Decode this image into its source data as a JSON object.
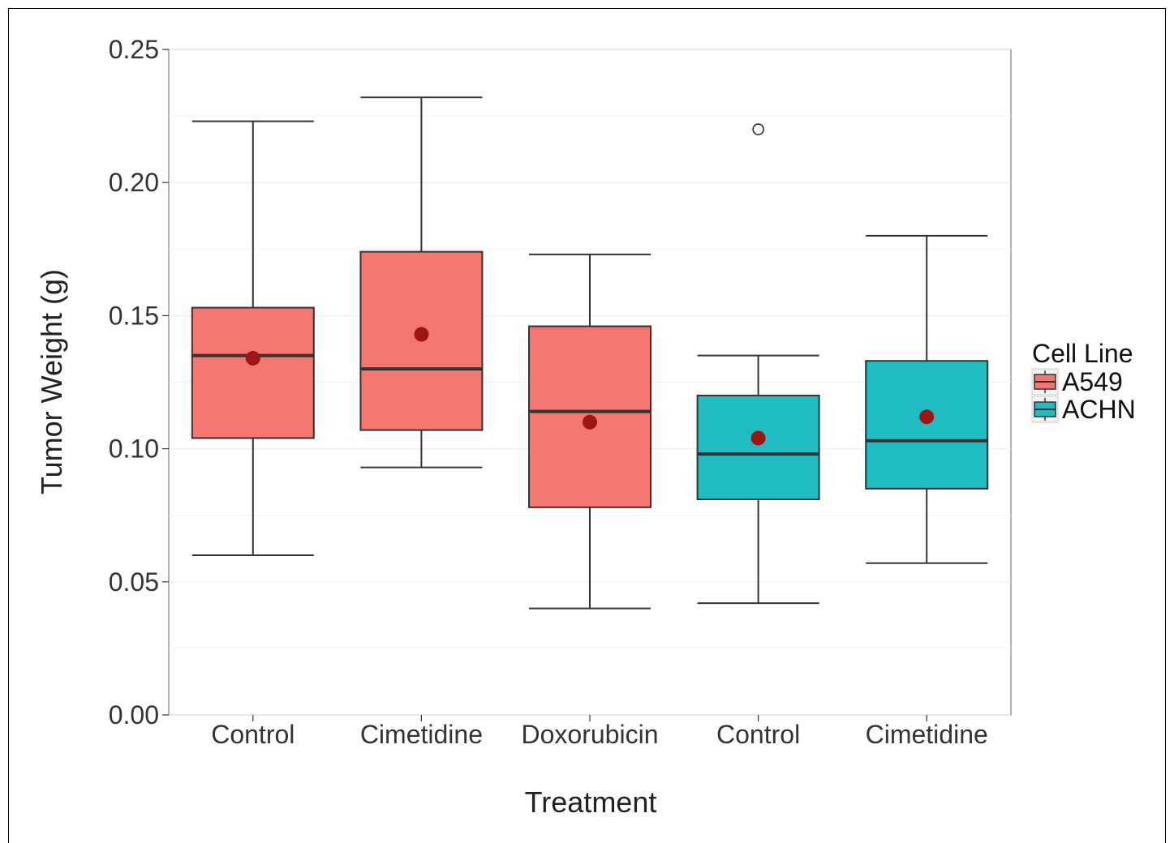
{
  "chart_data": {
    "type": "boxplot",
    "xlabel": "Treatment",
    "ylabel": "Tumor Weight (g)",
    "ylim": [
      0,
      0.25
    ],
    "yticks": [
      "0.00",
      "0.05",
      "0.10",
      "0.15",
      "0.20",
      "0.25"
    ],
    "ytick_values": [
      0,
      0.05,
      0.1,
      0.15,
      0.2,
      0.25
    ],
    "grid": true,
    "legend": {
      "title": "Cell Line",
      "position": "right",
      "entries": [
        {
          "name": "A549",
          "color": "#F37670"
        },
        {
          "name": "ACHN",
          "color": "#1FBDC2"
        }
      ]
    },
    "mean_marker_color": "#9E1515",
    "boxes": [
      {
        "category": "Control",
        "group": "A549",
        "whisker_low": 0.06,
        "q1": 0.104,
        "median": 0.135,
        "q3": 0.153,
        "whisker_high": 0.223,
        "mean": 0.134,
        "outliers": []
      },
      {
        "category": "Cimetidine",
        "group": "A549",
        "whisker_low": 0.093,
        "q1": 0.107,
        "median": 0.13,
        "q3": 0.174,
        "whisker_high": 0.232,
        "mean": 0.143,
        "outliers": []
      },
      {
        "category": "Doxorubicin",
        "group": "A549",
        "whisker_low": 0.04,
        "q1": 0.078,
        "median": 0.114,
        "q3": 0.146,
        "whisker_high": 0.173,
        "mean": 0.11,
        "outliers": []
      },
      {
        "category": "Control",
        "group": "ACHN",
        "whisker_low": 0.042,
        "q1": 0.081,
        "median": 0.098,
        "q3": 0.12,
        "whisker_high": 0.135,
        "mean": 0.104,
        "outliers": [
          0.22
        ]
      },
      {
        "category": "Cimetidine",
        "group": "ACHN",
        "whisker_low": 0.057,
        "q1": 0.085,
        "median": 0.103,
        "q3": 0.133,
        "whisker_high": 0.18,
        "mean": 0.112,
        "outliers": []
      }
    ]
  }
}
